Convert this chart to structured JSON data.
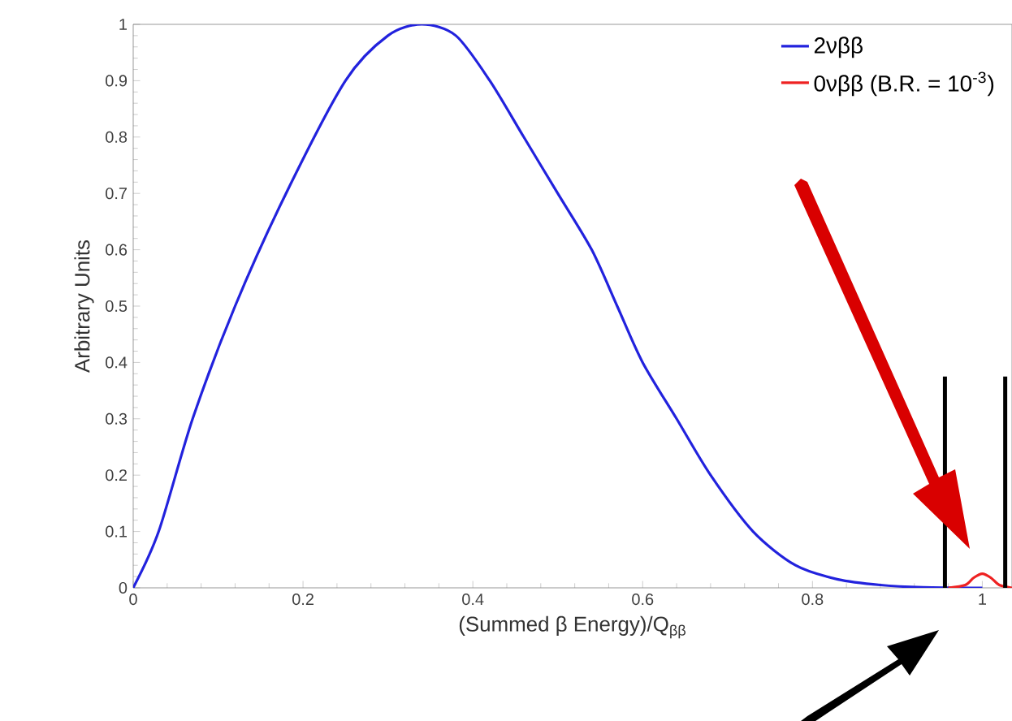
{
  "chart_data": {
    "type": "line",
    "xlabel": "(Summed β Energy)/Q$_{ββ}$",
    "ylabel": "Arbitrary Units",
    "xlim": [
      0,
      1.035
    ],
    "ylim": [
      0,
      1
    ],
    "xticks": [
      0,
      0.2,
      0.4,
      0.6,
      0.8,
      1
    ],
    "yticks": [
      0,
      0.1,
      0.2,
      0.3,
      0.4,
      0.5,
      0.6,
      0.7,
      0.8,
      0.9,
      1
    ],
    "legend": "top right",
    "grid": false,
    "ref_lines": [
      {
        "axis": "x",
        "value": 0.956,
        "color": "#000000"
      },
      {
        "axis": "x",
        "value": 1.027,
        "color": "#000000"
      }
    ],
    "series": [
      {
        "name": "2νββ",
        "color": "#2222dd",
        "x": [
          0,
          0.03,
          0.07,
          0.12,
          0.18,
          0.25,
          0.3,
          0.34,
          0.38,
          0.42,
          0.46,
          0.5,
          0.54,
          0.57,
          0.6,
          0.64,
          0.68,
          0.73,
          0.78,
          0.83,
          0.88,
          0.93,
          1.0
        ],
        "values": [
          0,
          0.1,
          0.3,
          0.5,
          0.7,
          0.9,
          0.98,
          1,
          0.98,
          0.9,
          0.8,
          0.7,
          0.6,
          0.5,
          0.4,
          0.3,
          0.2,
          0.1,
          0.04,
          0.015,
          0.005,
          0.001,
          0
        ]
      },
      {
        "name": "0νββ (B.R. = 10$^{-3}$)",
        "color": "#ee2222",
        "x": [
          0.96,
          0.98,
          0.99,
          1.0,
          1.01,
          1.02,
          1.035
        ],
        "values": [
          0,
          0.005,
          0.018,
          0.025,
          0.018,
          0.005,
          0
        ]
      }
    ]
  }
}
